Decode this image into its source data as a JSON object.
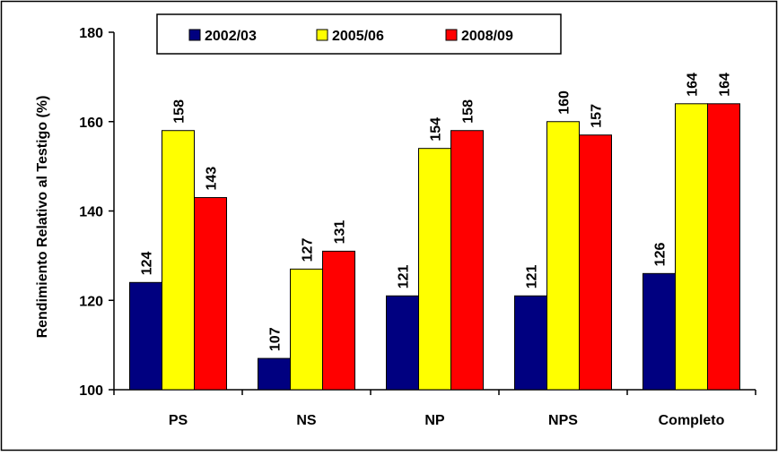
{
  "chart_data": {
    "type": "bar",
    "title": "",
    "xlabel": "",
    "ylabel": "Rendimiento Relativo al Testigo (%)",
    "ylim": [
      100,
      180
    ],
    "yticks": [
      100,
      120,
      140,
      160,
      180
    ],
    "grid": false,
    "legend_position": "top",
    "categories": [
      "PS",
      "NS",
      "NP",
      "NPS",
      "Completo"
    ],
    "series": [
      {
        "name": "2002/03",
        "color": "#000080",
        "values": [
          124,
          107,
          121,
          121,
          126
        ]
      },
      {
        "name": "2005/06",
        "color": "#FFFF00",
        "values": [
          158,
          127,
          154,
          160,
          164
        ]
      },
      {
        "name": "2008/09",
        "color": "#FF0000",
        "values": [
          143,
          131,
          158,
          157,
          164
        ]
      }
    ],
    "data_labels": [
      [
        "124",
        "107",
        "121",
        "121",
        "126"
      ],
      [
        "158",
        "127",
        "154",
        "160",
        "164"
      ],
      [
        "143",
        "131",
        "158",
        "157",
        "164"
      ]
    ]
  }
}
